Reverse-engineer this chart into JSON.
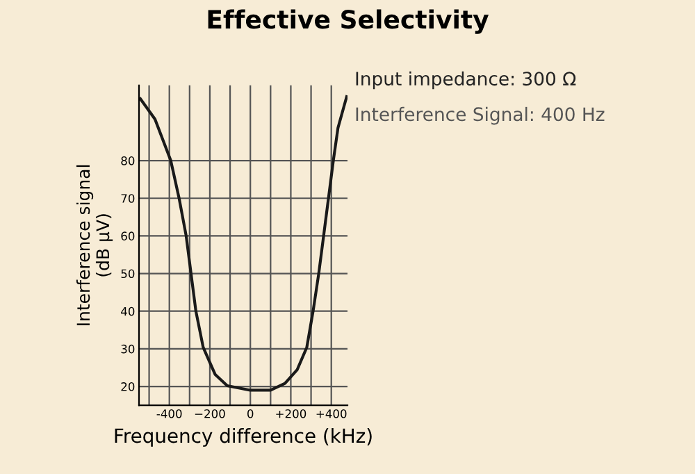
{
  "chart_data": {
    "type": "line",
    "title": "Effective Selectivity",
    "xlabel": "Frequency difference (kHz)",
    "ylabel": "Interference signal\n(dB µV)",
    "annotations": [
      "Input impedance: 300 Ω",
      "Interference Signal: 400 Hz"
    ],
    "x": [
      -543,
      -471,
      -393,
      -352,
      -317,
      -293,
      -269,
      -233,
      -174,
      -114,
      0,
      100,
      171,
      231,
      279,
      310,
      338,
      362,
      386,
      410,
      433,
      476
    ],
    "series": [
      {
        "color": "#1a1a1a",
        "values": [
          96.4,
          91,
          80,
          70,
          60,
          50,
          40,
          30.4,
          23.2,
          20.2,
          19,
          19,
          20.8,
          24.4,
          30.4,
          40,
          50,
          60,
          70,
          80,
          88.7,
          97
        ]
      }
    ],
    "xlim": [
      -550,
      480
    ],
    "ylim": [
      15,
      100
    ],
    "xticks": [
      {
        "value": -500,
        "label": null
      },
      -400,
      {
        "value": -300,
        "label": null
      },
      {
        "value": -200,
        "label": "−200"
      },
      {
        "value": -100,
        "label": null
      },
      0,
      {
        "value": 100,
        "label": null
      },
      {
        "value": 200,
        "label": "+200"
      },
      {
        "value": 300,
        "label": null
      },
      {
        "value": 400,
        "label": "+400"
      }
    ],
    "yticks": [
      20,
      30,
      40,
      50,
      60,
      70,
      80
    ],
    "grid": true,
    "marker": "none",
    "line_style": "solid",
    "legend": false
  }
}
